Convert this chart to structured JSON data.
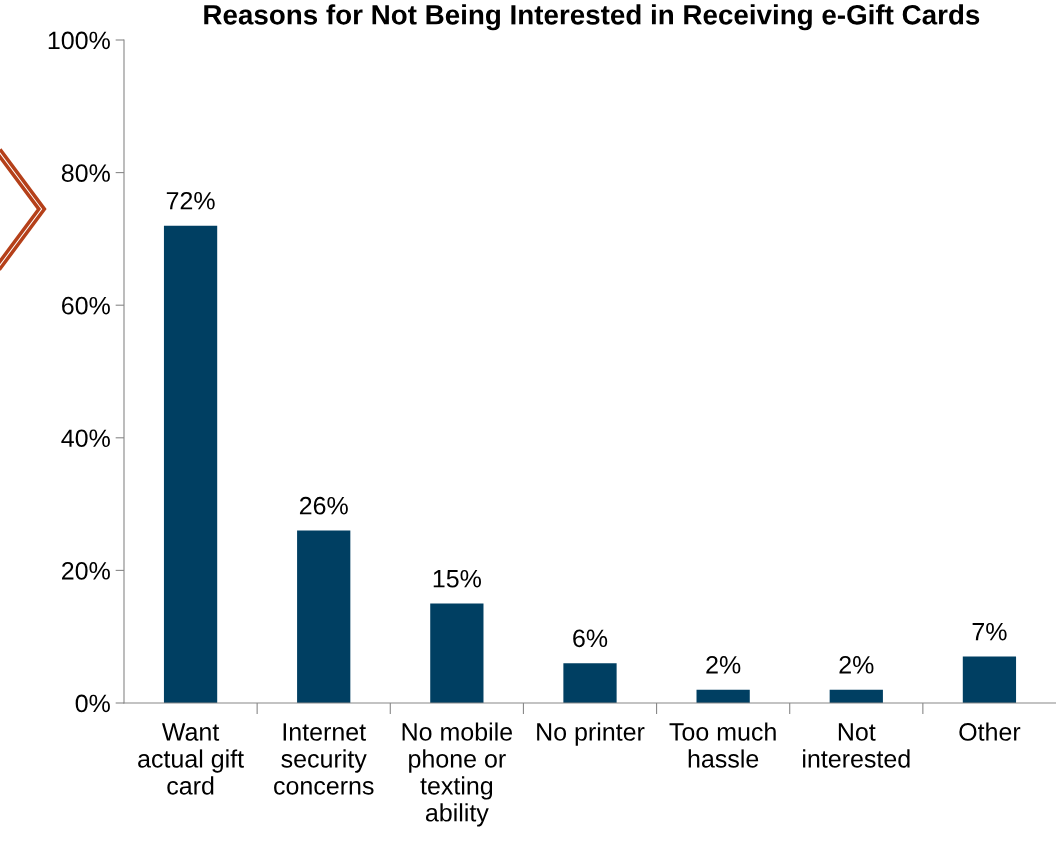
{
  "chart_data": {
    "type": "bar",
    "title": "Reasons for Not Being Interested in Receiving e-Gift Cards",
    "categories": [
      "Want\nactual gift\ncard",
      "Internet\nsecurity\nconcerns",
      "No mobile\nphone or\ntexting\nability",
      "No printer",
      "Too much\nhassle",
      "Not\ninterested",
      "Other"
    ],
    "values": [
      72,
      26,
      15,
      6,
      2,
      2,
      7
    ],
    "color": "#003f62",
    "ylim": [
      0,
      100
    ],
    "yticks": [
      {
        "value": 0,
        "label": "0%"
      },
      {
        "value": 20,
        "label": "20%"
      },
      {
        "value": 40,
        "label": "40%"
      },
      {
        "value": 60,
        "label": "60%"
      },
      {
        "value": 80,
        "label": "80%"
      },
      {
        "value": 100,
        "label": "100%"
      }
    ],
    "value_labels": [
      "72%",
      "26%",
      "15%",
      "6%",
      "2%",
      "2%",
      "7%"
    ],
    "grid": false,
    "legend": false
  }
}
